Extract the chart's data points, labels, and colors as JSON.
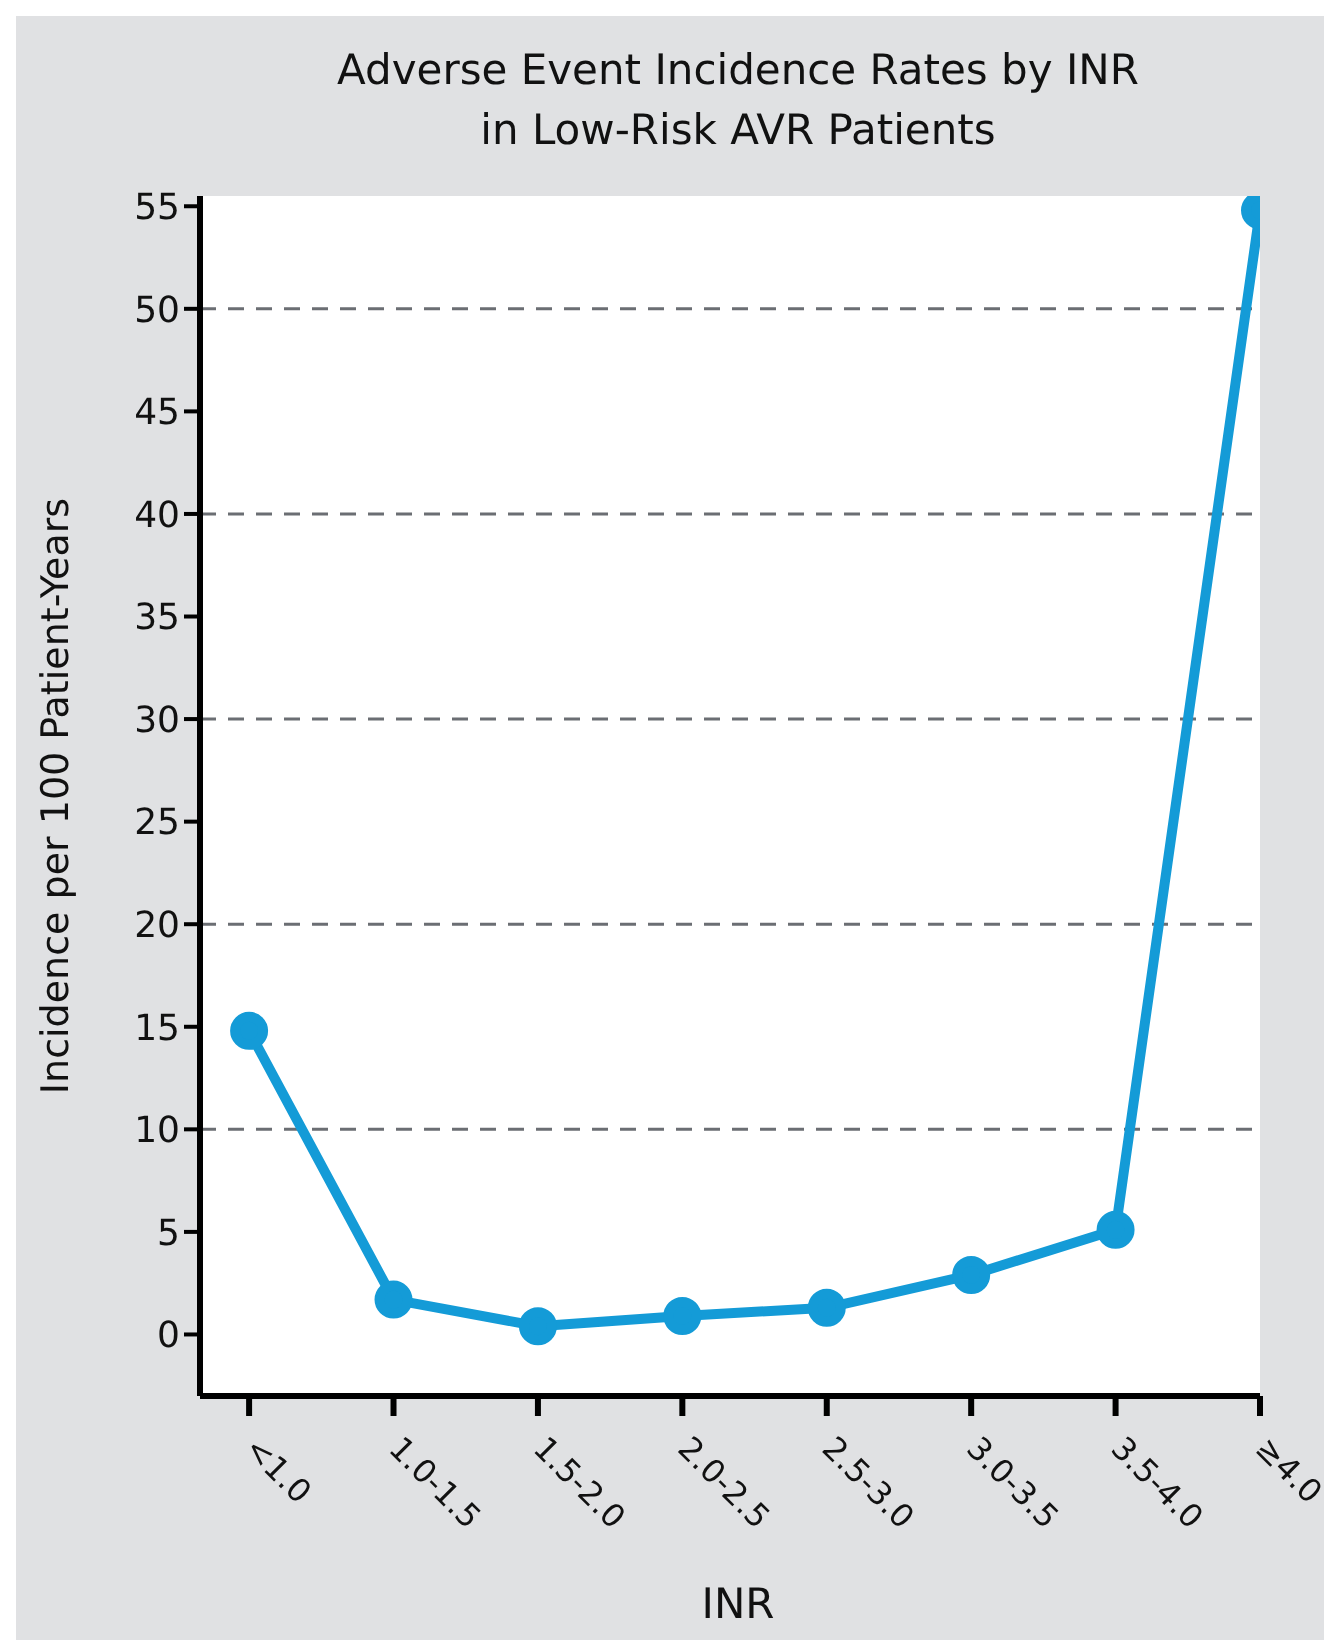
{
  "chart_data": {
    "type": "line",
    "title": "Adverse Event Incidence Rates by INR\nin Low-Risk AVR Patients",
    "xlabel": "INR",
    "ylabel": "Incidence per 100 Patient-Years",
    "categories": [
      "<1.0",
      "1.0-1.5",
      "1.5-2.0",
      "2.0-2.5",
      "2.5-3.0",
      "3.0-3.5",
      "3.5-4.0",
      "≥4.0"
    ],
    "series": [
      {
        "color": "#149bd7",
        "values": [
          14.8,
          1.7,
          0.4,
          0.9,
          1.3,
          2.9,
          5.1,
          54.8
        ]
      }
    ],
    "ylim": [
      -3,
      55.5
    ],
    "yticks": [
      0,
      5,
      10,
      15,
      20,
      25,
      30,
      35,
      40,
      45,
      50,
      55
    ],
    "ref_lines": [
      {
        "axis": "y",
        "value": 10,
        "color": "#6b6e73",
        "line_style": "dashed"
      },
      {
        "axis": "y",
        "value": 20,
        "color": "#6b6e73",
        "line_style": "dashed"
      },
      {
        "axis": "y",
        "value": 30,
        "color": "#6b6e73",
        "line_style": "dashed"
      },
      {
        "axis": "y",
        "value": 40,
        "color": "#6b6e73",
        "line_style": "dashed"
      },
      {
        "axis": "y",
        "value": 50,
        "color": "#6b6e73",
        "line_style": "dashed"
      }
    ],
    "grid": false,
    "legend": false,
    "marker": "circle",
    "line_style": "solid"
  }
}
